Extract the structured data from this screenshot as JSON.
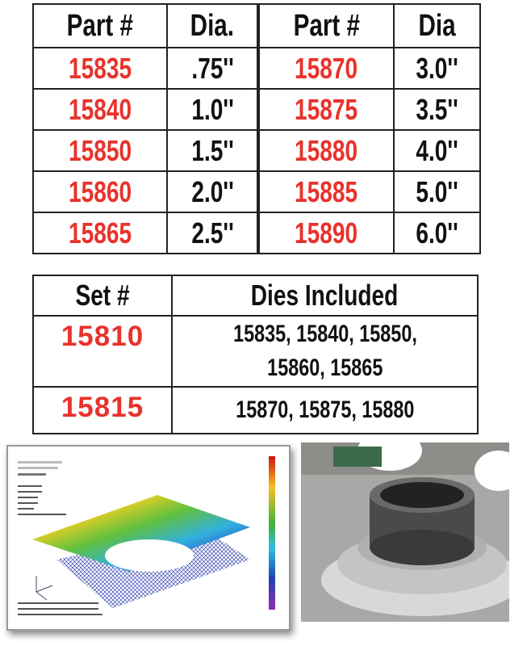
{
  "parts_table": {
    "headers": [
      "Part #",
      "Dia.",
      "Part #",
      "Dia"
    ],
    "rows": [
      [
        "15835",
        ".75''",
        "15870",
        "3.0''"
      ],
      [
        "15840",
        "1.0''",
        "15875",
        "3.5''"
      ],
      [
        "15850",
        "1.5''",
        "15880",
        "4.0''"
      ],
      [
        "15860",
        "2.0''",
        "15885",
        "5.0''"
      ],
      [
        "15865",
        "2.5''",
        "15890",
        "6.0''"
      ]
    ]
  },
  "sets_table": {
    "headers": [
      "Set #",
      "Dies Included"
    ],
    "rows": [
      {
        "set": "15810",
        "dies": [
          "15835, 15840, 15850,",
          "15860, 15865"
        ]
      },
      {
        "set": "15815",
        "dies": [
          "15870, 15875, 15880"
        ]
      }
    ]
  },
  "colors": {
    "part_number": "#e8322b",
    "text": "#111111",
    "border": "#222222"
  },
  "images": {
    "left": "fea-stress-plot",
    "right": "die-photo"
  }
}
